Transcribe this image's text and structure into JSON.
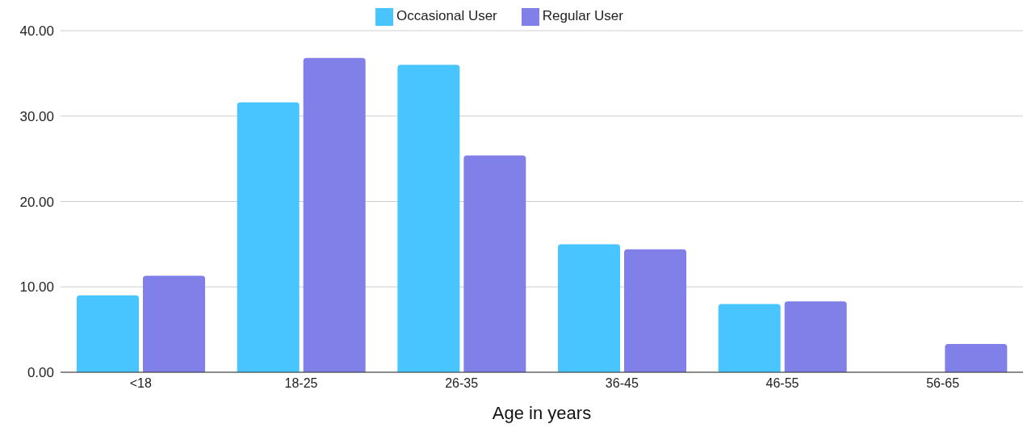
{
  "chart_data": {
    "type": "bar",
    "xlabel": "Age in years",
    "categories": [
      "<18",
      "18-25",
      "26-35",
      "36-45",
      "46-55",
      "56-65"
    ],
    "series": [
      {
        "name": "Occasional User",
        "color": "#48c4fe",
        "values": [
          9.0,
          31.6,
          36.0,
          15.0,
          8.0,
          0
        ]
      },
      {
        "name": "Regular User",
        "color": "#8080e8",
        "values": [
          11.3,
          36.8,
          25.4,
          14.4,
          8.3,
          3.3
        ]
      }
    ],
    "ylim": [
      0,
      40
    ],
    "yticks": [
      {
        "value": 0,
        "label": "0.00"
      },
      {
        "value": 10,
        "label": "10.00"
      },
      {
        "value": 20,
        "label": "20.00"
      },
      {
        "value": 30,
        "label": "30.00"
      },
      {
        "value": 40,
        "label": "40.00"
      }
    ],
    "grid": "y",
    "legend": "top"
  }
}
